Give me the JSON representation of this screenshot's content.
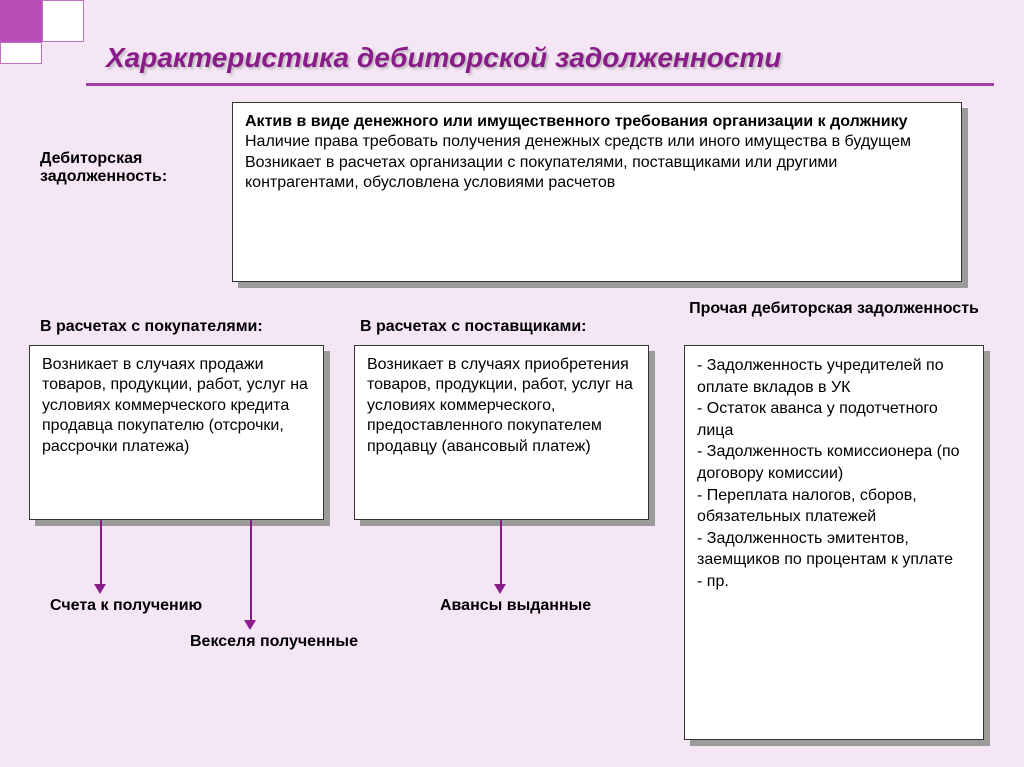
{
  "colors": {
    "background": "#f5e6f5",
    "accent": "#8a1c8a",
    "box_bg": "#ffffff",
    "box_border": "#333333",
    "shadow": "#9b9b9b",
    "deco_square": "#b84fb8"
  },
  "typography": {
    "title_fontsize": 28,
    "title_style": "bold italic",
    "body_fontsize": 16,
    "label_fontsize": 16,
    "label_weight": "bold"
  },
  "title": "Характеристика дебиторской задолженности",
  "left_label": "Дебиторская задолженность:",
  "definition_box": {
    "lines": [
      {
        "bold": true,
        "text": "Актив в виде денежного или имущественного требования организации к должнику"
      },
      {
        "bold": false,
        "text": "Наличие права требовать получения денежных средств или иного имущества в будущем"
      },
      {
        "bold": false,
        "text": "Возникает в расчетах организации с покупателями, поставщиками или другими контрагентами, обусловлена условиями расчетов"
      }
    ]
  },
  "columns": [
    {
      "header": "В расчетах с покупателями:",
      "body": "Возникает в случаях продажи товаров, продукции, работ, услуг на условиях коммерческого кредита продавца покупателю (отсрочки, рассрочки платежа)",
      "results": [
        "Счета к получению",
        "Векселя полученные"
      ]
    },
    {
      "header": "В расчетах с поставщиками:",
      "body": "Возникает в случаях приобретения товаров, продукции, работ, услуг на условиях коммерческого, предоставленного покупателем продавцу (авансовый платеж)",
      "results": [
        "Авансы выданные"
      ]
    },
    {
      "header": "Прочая дебиторская задолженность",
      "body_lines": [
        "- Задолженность учредителей по оплате вкладов в УК",
        "- Остаток аванса у подотчетного лица",
        "- Задолженность комиссионера (по договору комиссии)",
        "- Переплата налогов, сборов, обязательных платежей",
        "- Задолженность эмитентов, заемщиков по процентам к уплате",
        "- пр."
      ]
    }
  ]
}
